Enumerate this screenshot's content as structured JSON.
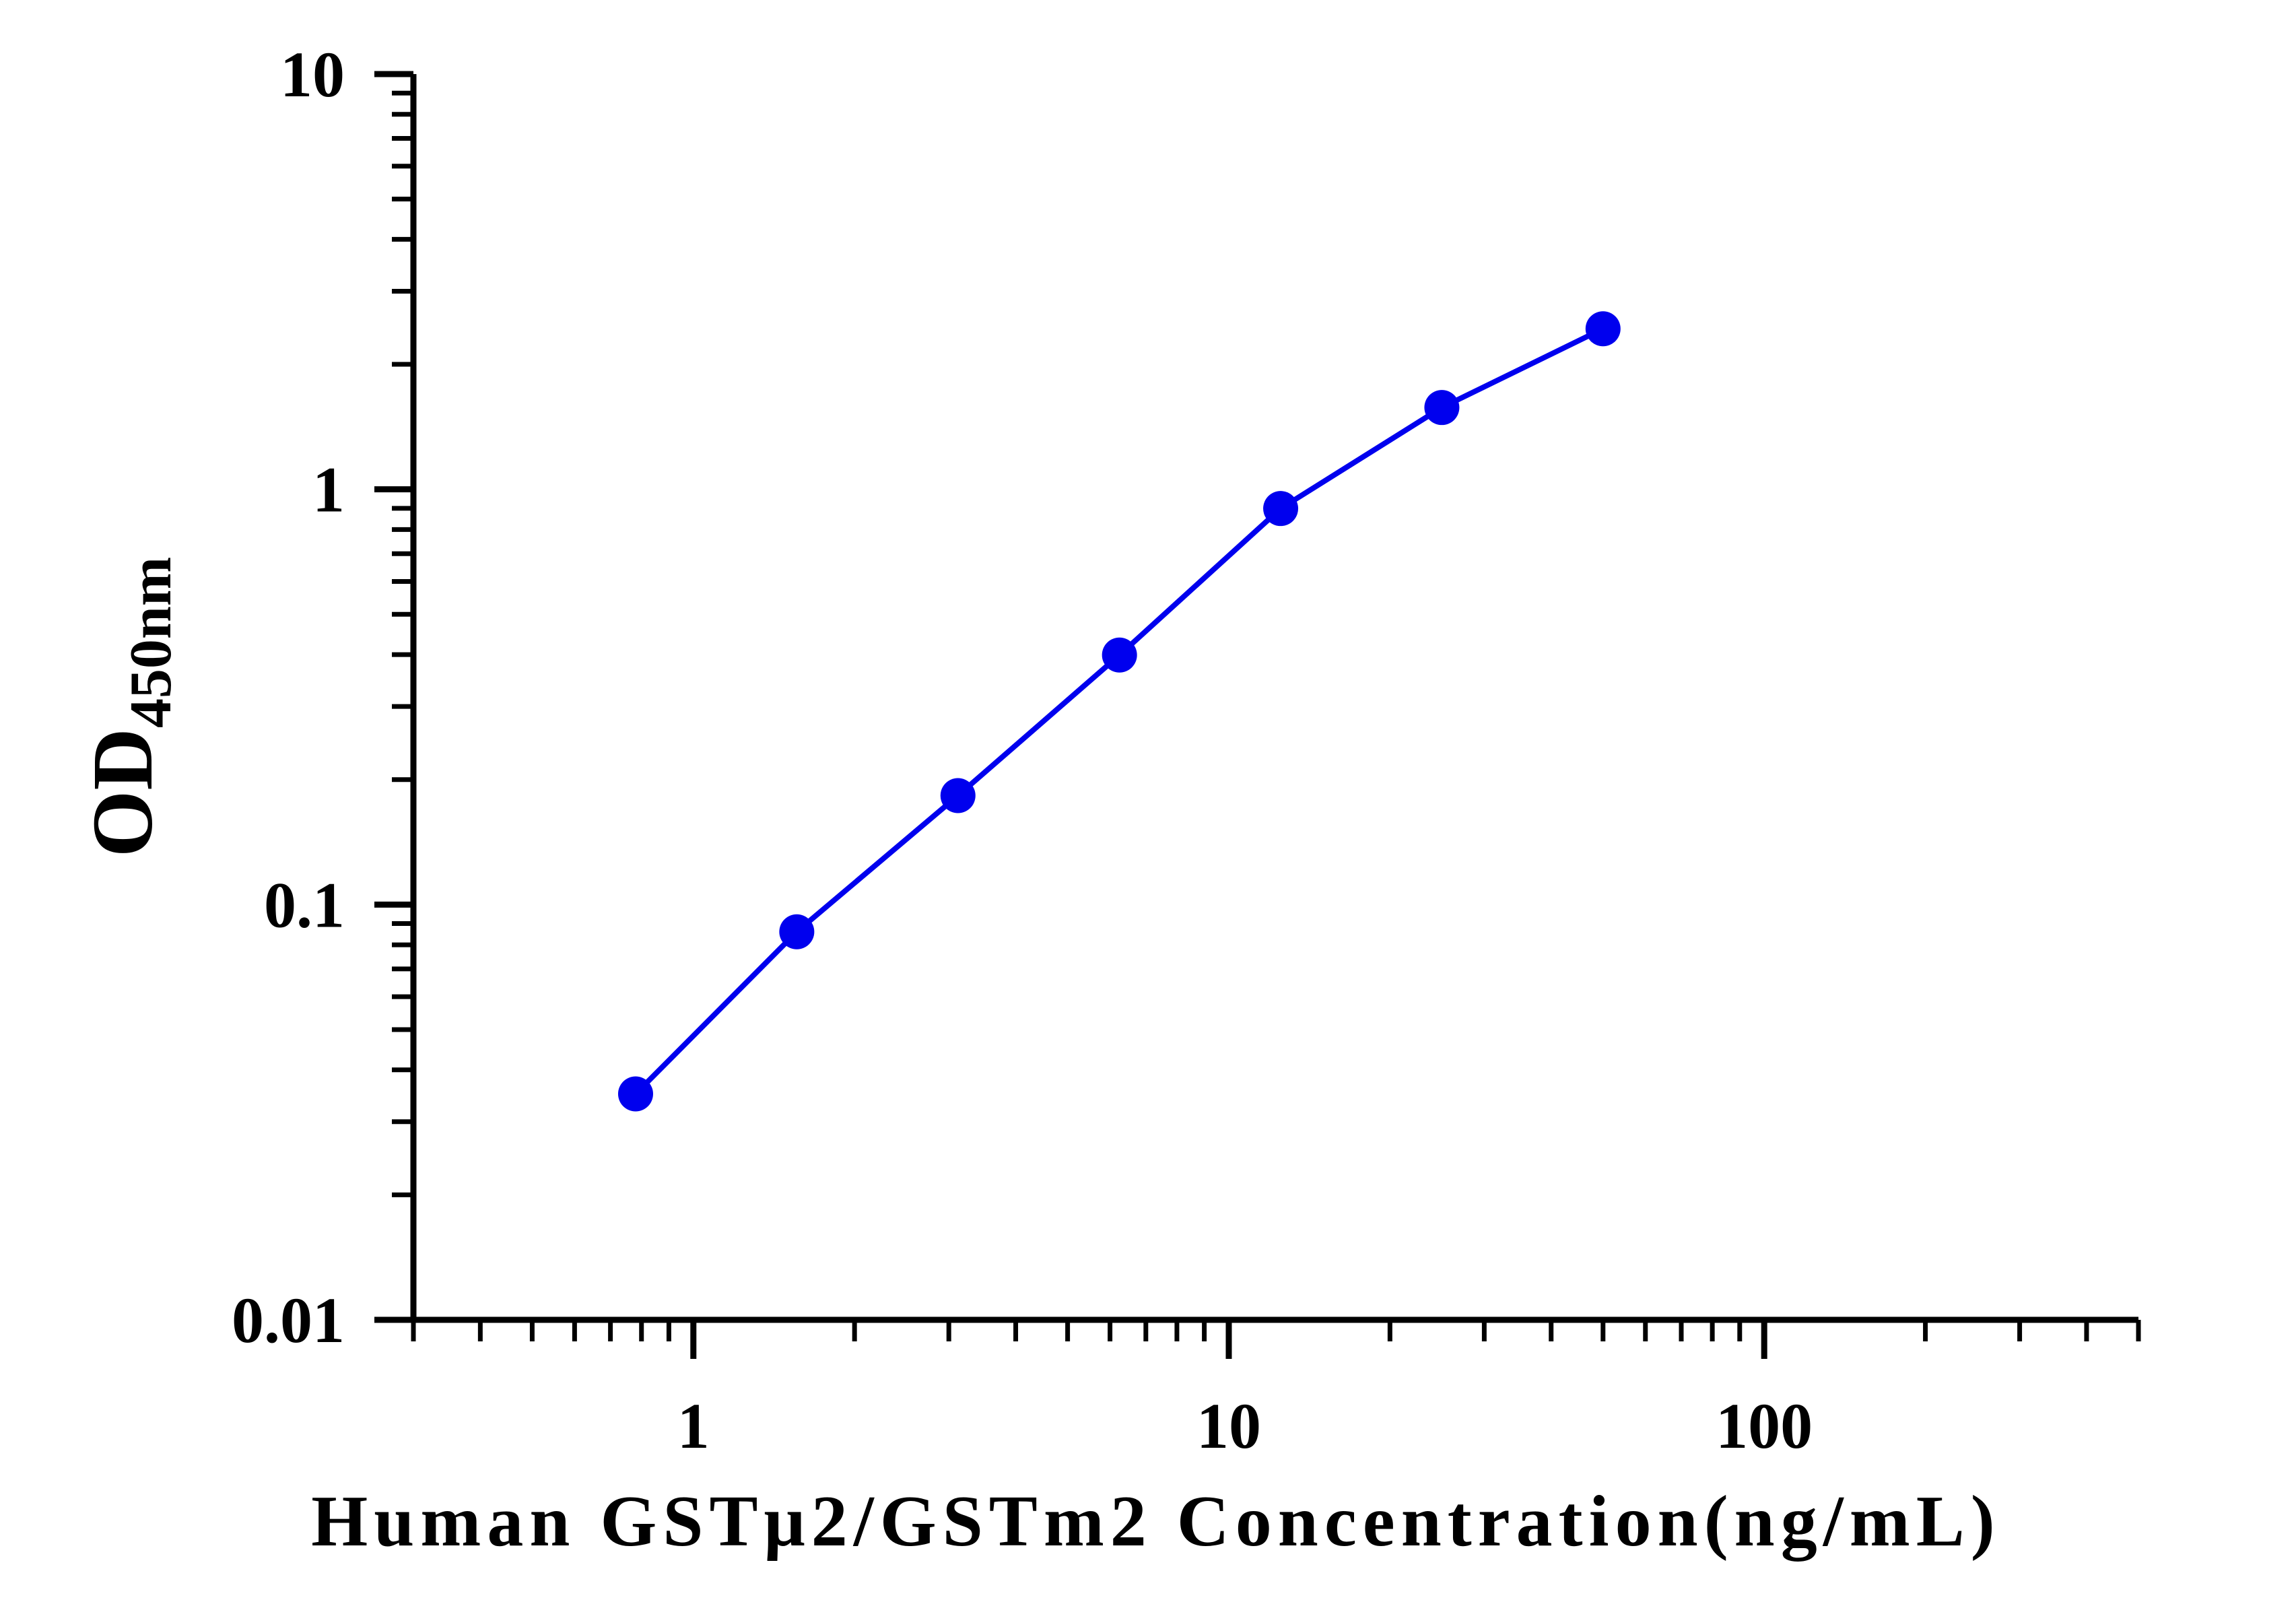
{
  "chart_data": {
    "type": "line",
    "title": "",
    "xlabel": "Human GSTμ2/GSTm2 Concentration(ng/mL)",
    "ylabel_main": "OD",
    "ylabel_sub": "450nm",
    "x_scale": "log",
    "y_scale": "log",
    "xlim": [
      0.3,
      500
    ],
    "ylim": [
      0.01,
      10
    ],
    "x_ticks": [
      {
        "value": 1,
        "label": "1"
      },
      {
        "value": 10,
        "label": "10"
      },
      {
        "value": 100,
        "label": "100"
      }
    ],
    "y_ticks": [
      {
        "value": 0.01,
        "label": "0.01"
      },
      {
        "value": 0.1,
        "label": "0.1"
      },
      {
        "value": 1,
        "label": "1"
      },
      {
        "value": 10,
        "label": "10"
      }
    ],
    "grid": false,
    "legend": false,
    "series": [
      {
        "color": "#0000ee",
        "marker": "circle",
        "x": [
          0.78,
          1.56,
          3.12,
          6.25,
          12.5,
          25,
          50
        ],
        "y": [
          0.035,
          0.086,
          0.183,
          0.399,
          0.899,
          1.574,
          2.436
        ]
      }
    ]
  }
}
